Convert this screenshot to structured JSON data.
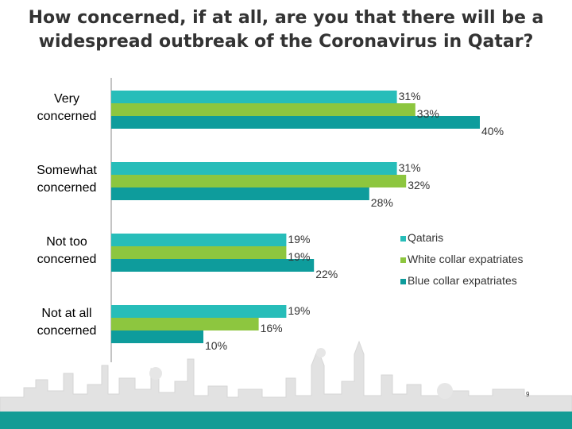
{
  "title_lines": [
    "How concerned, if at all, are you that there will be a",
    "widespread outbreak of the Coronavirus in Qatar?"
  ],
  "page_number": "9",
  "colors": {
    "qataris": "#27BDB9",
    "white_collar": "#8DC63F",
    "blue_collar": "#0E9C9C",
    "footer": "#139C95",
    "skyline": "#E0E0E0"
  },
  "chart_data": {
    "type": "bar",
    "orientation": "horizontal",
    "categories": [
      [
        "Very",
        "concerned"
      ],
      [
        "Somewhat",
        "concerned"
      ],
      [
        "Not too",
        "concerned"
      ],
      [
        "Not at all",
        "concerned"
      ]
    ],
    "series": [
      {
        "name": "Qataris",
        "values": [
          31,
          31,
          19,
          19
        ],
        "color": "#27BDB9"
      },
      {
        "name": "White collar expatriates",
        "values": [
          33,
          32,
          19,
          16
        ],
        "color": "#8DC63F"
      },
      {
        "name": "Blue collar expatriates",
        "values": [
          40,
          28,
          22,
          10
        ],
        "color": "#0E9C9C"
      }
    ],
    "value_suffix": "%",
    "legend_position": "right",
    "grid": false
  }
}
